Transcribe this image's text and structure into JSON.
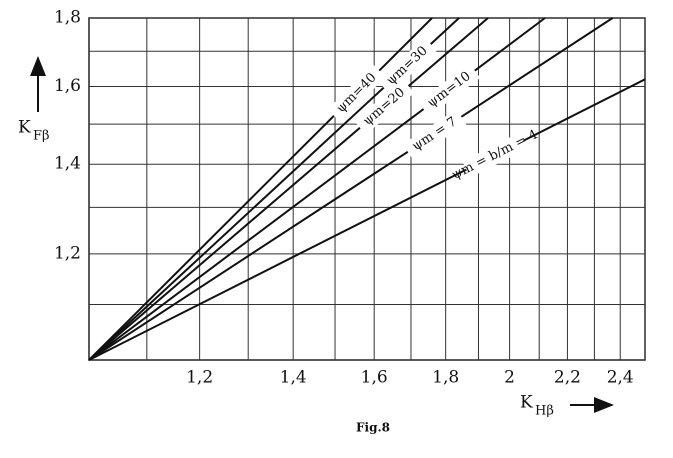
{
  "chart_data": {
    "type": "line",
    "title": "Fig.8",
    "x_label": "K",
    "x_label_sub": "Hβ",
    "y_label": "K",
    "y_label_sub": "Fβ",
    "log_x": true,
    "log_y": true,
    "grid": true,
    "xlim": [
      1,
      2.5
    ],
    "ylim": [
      1,
      1.8
    ],
    "xticks": [
      {
        "value": 1.2,
        "label": "1,2"
      },
      {
        "value": 1.4,
        "label": "1,4"
      },
      {
        "value": 1.6,
        "label": "1,6"
      },
      {
        "value": 1.8,
        "label": "1,8"
      },
      2,
      {
        "value": 2.2,
        "label": "2,2"
      },
      {
        "value": 2.4,
        "label": "2,4"
      }
    ],
    "x_minor_ticks": [
      1.1,
      1.3,
      1.5,
      1.7,
      1.9,
      2.1,
      2.3,
      2.5
    ],
    "yticks": [
      {
        "value": 1.2,
        "label": "1,2"
      },
      {
        "value": 1.4,
        "label": "1,4"
      },
      {
        "value": 1.6,
        "label": "1,6"
      },
      {
        "value": 1.8,
        "label": "1,8"
      }
    ],
    "y_minor_ticks": [
      1.1,
      1.3,
      1.5,
      1.7
    ],
    "series": [
      {
        "name": "ψm=40",
        "color": "#111111",
        "x": [
          1,
          1.76
        ],
        "values": [
          1,
          1.8
        ]
      },
      {
        "name": "ψm=30",
        "color": "#111111",
        "x": [
          1,
          1.84
        ],
        "values": [
          1,
          1.8
        ]
      },
      {
        "name": "ψm=20",
        "color": "#111111",
        "x": [
          1,
          1.93
        ],
        "values": [
          1,
          1.8
        ]
      },
      {
        "name": "ψm=10",
        "color": "#111111",
        "x": [
          1,
          2.12
        ],
        "values": [
          1,
          1.8
        ]
      },
      {
        "name": "ψm = 7",
        "color": "#111111",
        "x": [
          1,
          2.37
        ],
        "values": [
          1,
          1.8
        ]
      },
      {
        "name": "ψm = b/m = 4",
        "color": "#111111",
        "x": [
          1,
          2.5
        ],
        "values": [
          1,
          1.62
        ]
      }
    ]
  }
}
